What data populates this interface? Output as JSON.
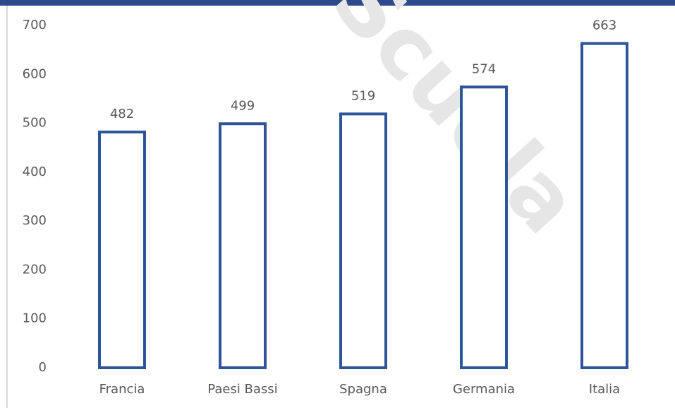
{
  "chart_data": {
    "type": "bar",
    "watermark": "Scuola",
    "categories": [
      "Francia",
      "Paesi Bassi",
      "Spagna",
      "Germania",
      "Italia"
    ],
    "values": [
      482,
      499,
      519,
      574,
      663
    ],
    "color": "#2e5597",
    "ylim": [
      0,
      700
    ],
    "yticks": [
      0,
      100,
      200,
      300,
      400,
      500,
      600,
      700
    ],
    "grid": false
  }
}
